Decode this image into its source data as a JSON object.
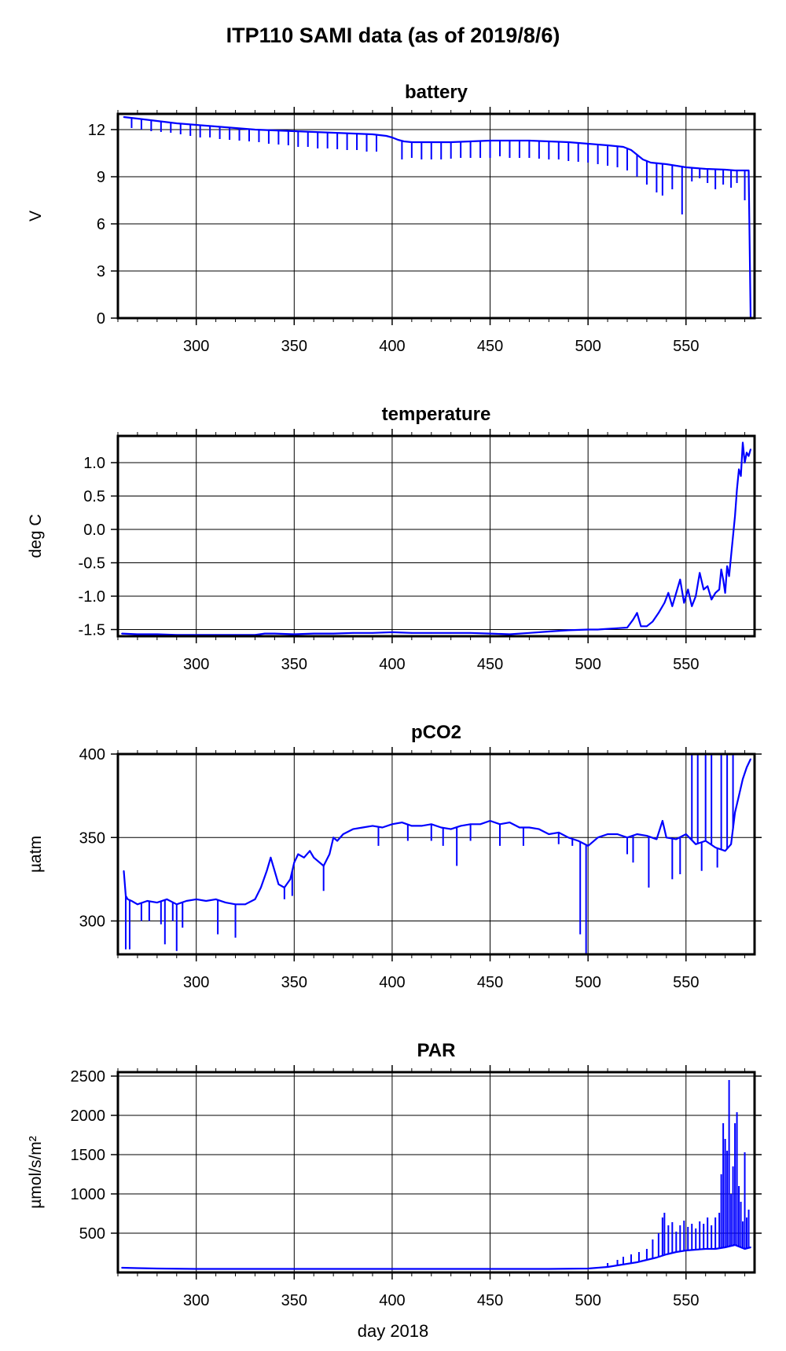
{
  "figure": {
    "title": "ITP110 SAMI data (as of 2019/8/6)",
    "xlabel": "day 2018"
  },
  "chart_data": [
    {
      "type": "line",
      "title": "battery",
      "ylabel": "V",
      "xlim": [
        260,
        585
      ],
      "ylim": [
        0,
        13
      ],
      "xticks": [
        300,
        350,
        400,
        450,
        500,
        550
      ],
      "yticks": [
        0,
        3,
        6,
        9,
        12
      ],
      "ytick_labels": [
        "0",
        "3",
        "6",
        "9",
        "12"
      ],
      "grid": true,
      "color": "#0000ff",
      "series": [
        {
          "x": [
            263,
            270,
            280,
            290,
            300,
            310,
            320,
            330,
            340,
            350,
            360,
            370,
            380,
            390,
            397,
            400,
            403,
            406,
            410,
            420,
            430,
            440,
            450,
            460,
            470,
            480,
            490,
            500,
            510,
            518,
            522,
            525,
            528,
            532,
            540,
            550,
            560,
            570,
            575,
            582,
            583
          ],
          "y": [
            12.8,
            12.7,
            12.55,
            12.4,
            12.3,
            12.2,
            12.1,
            12.0,
            11.95,
            11.9,
            11.85,
            11.8,
            11.75,
            11.7,
            11.6,
            11.5,
            11.35,
            11.25,
            11.2,
            11.2,
            11.2,
            11.25,
            11.3,
            11.3,
            11.3,
            11.25,
            11.2,
            11.1,
            11.0,
            10.9,
            10.7,
            10.4,
            10.1,
            9.9,
            9.8,
            9.6,
            9.5,
            9.45,
            9.4,
            9.4,
            0
          ]
        }
      ],
      "spikes": [
        {
          "x": 267,
          "y": 12.1
        },
        {
          "x": 272,
          "y": 12.0
        },
        {
          "x": 277,
          "y": 11.9
        },
        {
          "x": 282,
          "y": 11.85
        },
        {
          "x": 287,
          "y": 11.8
        },
        {
          "x": 292,
          "y": 11.7
        },
        {
          "x": 297,
          "y": 11.6
        },
        {
          "x": 302,
          "y": 11.5
        },
        {
          "x": 307,
          "y": 11.5
        },
        {
          "x": 312,
          "y": 11.4
        },
        {
          "x": 317,
          "y": 11.35
        },
        {
          "x": 322,
          "y": 11.3
        },
        {
          "x": 327,
          "y": 11.25
        },
        {
          "x": 332,
          "y": 11.2
        },
        {
          "x": 337,
          "y": 11.1
        },
        {
          "x": 342,
          "y": 11.05
        },
        {
          "x": 347,
          "y": 11.0
        },
        {
          "x": 352,
          "y": 10.9
        },
        {
          "x": 357,
          "y": 10.9
        },
        {
          "x": 362,
          "y": 10.8
        },
        {
          "x": 367,
          "y": 10.8
        },
        {
          "x": 372,
          "y": 10.75
        },
        {
          "x": 377,
          "y": 10.7
        },
        {
          "x": 382,
          "y": 10.7
        },
        {
          "x": 387,
          "y": 10.6
        },
        {
          "x": 392,
          "y": 10.6
        },
        {
          "x": 405,
          "y": 10.1
        },
        {
          "x": 410,
          "y": 10.2
        },
        {
          "x": 415,
          "y": 10.1
        },
        {
          "x": 420,
          "y": 10.1
        },
        {
          "x": 425,
          "y": 10.1
        },
        {
          "x": 430,
          "y": 10.15
        },
        {
          "x": 435,
          "y": 10.2
        },
        {
          "x": 440,
          "y": 10.2
        },
        {
          "x": 445,
          "y": 10.2
        },
        {
          "x": 450,
          "y": 10.2
        },
        {
          "x": 455,
          "y": 10.3
        },
        {
          "x": 460,
          "y": 10.2
        },
        {
          "x": 465,
          "y": 10.2
        },
        {
          "x": 470,
          "y": 10.2
        },
        {
          "x": 475,
          "y": 10.15
        },
        {
          "x": 480,
          "y": 10.1
        },
        {
          "x": 485,
          "y": 10.1
        },
        {
          "x": 490,
          "y": 10.0
        },
        {
          "x": 495,
          "y": 9.95
        },
        {
          "x": 500,
          "y": 9.9
        },
        {
          "x": 505,
          "y": 9.8
        },
        {
          "x": 510,
          "y": 9.7
        },
        {
          "x": 515,
          "y": 9.6
        },
        {
          "x": 520,
          "y": 9.4
        },
        {
          "x": 525,
          "y": 9.0
        },
        {
          "x": 530,
          "y": 8.5
        },
        {
          "x": 535,
          "y": 8.0
        },
        {
          "x": 538,
          "y": 7.8
        },
        {
          "x": 543,
          "y": 8.2
        },
        {
          "x": 548,
          "y": 6.6
        },
        {
          "x": 553,
          "y": 8.7
        },
        {
          "x": 557,
          "y": 8.9
        },
        {
          "x": 561,
          "y": 8.6
        },
        {
          "x": 565,
          "y": 8.2
        },
        {
          "x": 569,
          "y": 8.5
        },
        {
          "x": 573,
          "y": 8.3
        },
        {
          "x": 576,
          "y": 8.6
        },
        {
          "x": 580,
          "y": 7.5
        }
      ]
    },
    {
      "type": "line",
      "title": "temperature",
      "ylabel": "deg C",
      "xlim": [
        260,
        585
      ],
      "ylim": [
        -1.6,
        1.4
      ],
      "xticks": [
        300,
        350,
        400,
        450,
        500,
        550
      ],
      "yticks": [
        -1.5,
        -1.0,
        -0.5,
        0.0,
        0.5,
        1.0
      ],
      "ytick_labels": [
        "-1.5",
        "-1.0",
        "-0.5",
        "0.0",
        "0.5",
        "1.0"
      ],
      "grid": true,
      "color": "#0000ff",
      "series": [
        {
          "x": [
            262,
            270,
            280,
            290,
            300,
            310,
            320,
            330,
            335,
            340,
            350,
            360,
            370,
            380,
            390,
            400,
            410,
            420,
            430,
            440,
            450,
            460,
            470,
            480,
            490,
            500,
            505,
            510,
            515,
            520,
            523,
            525,
            527,
            530,
            533,
            536,
            539,
            541,
            543,
            545,
            547,
            549,
            551,
            553,
            555,
            557,
            559,
            561,
            563,
            565,
            567,
            568,
            569,
            570,
            571,
            572,
            573,
            574,
            575,
            576,
            577,
            578,
            579,
            580,
            581,
            582,
            583
          ],
          "y": [
            -1.56,
            -1.57,
            -1.57,
            -1.58,
            -1.58,
            -1.58,
            -1.58,
            -1.58,
            -1.56,
            -1.56,
            -1.57,
            -1.56,
            -1.56,
            -1.55,
            -1.55,
            -1.54,
            -1.55,
            -1.55,
            -1.55,
            -1.55,
            -1.56,
            -1.57,
            -1.55,
            -1.53,
            -1.51,
            -1.5,
            -1.5,
            -1.49,
            -1.48,
            -1.47,
            -1.35,
            -1.25,
            -1.45,
            -1.45,
            -1.38,
            -1.25,
            -1.1,
            -0.95,
            -1.15,
            -0.95,
            -0.75,
            -1.1,
            -0.9,
            -1.15,
            -1.0,
            -0.65,
            -0.9,
            -0.85,
            -1.05,
            -0.95,
            -0.9,
            -0.6,
            -0.75,
            -0.95,
            -0.55,
            -0.7,
            -0.4,
            -0.1,
            0.2,
            0.6,
            0.9,
            0.8,
            1.3,
            1.0,
            1.15,
            1.1,
            1.2
          ]
        }
      ]
    },
    {
      "type": "line",
      "title": "pCO2",
      "ylabel": "µatm",
      "xlim": [
        260,
        585
      ],
      "ylim": [
        280,
        400
      ],
      "xticks": [
        300,
        350,
        400,
        450,
        500,
        550
      ],
      "yticks": [
        300,
        350,
        400
      ],
      "ytick_labels": [
        "300",
        "350",
        "400"
      ],
      "grid": true,
      "color": "#0000ff",
      "series": [
        {
          "x": [
            263,
            264,
            265,
            267,
            270,
            275,
            280,
            285,
            290,
            295,
            300,
            305,
            310,
            315,
            320,
            325,
            330,
            333,
            336,
            338,
            340,
            342,
            345,
            348,
            350,
            352,
            355,
            358,
            360,
            365,
            368,
            370,
            372,
            375,
            380,
            385,
            390,
            395,
            400,
            405,
            410,
            415,
            420,
            425,
            430,
            435,
            440,
            445,
            450,
            455,
            460,
            465,
            470,
            475,
            480,
            485,
            490,
            495,
            500,
            505,
            510,
            515,
            520,
            525,
            530,
            535,
            538,
            540,
            545,
            550,
            555,
            560,
            565,
            570,
            573,
            575,
            577,
            579,
            581,
            583
          ],
          "y": [
            330,
            315,
            313,
            312,
            310,
            312,
            311,
            313,
            310,
            312,
            313,
            312,
            313,
            311,
            310,
            310,
            313,
            320,
            330,
            338,
            330,
            322,
            320,
            325,
            335,
            340,
            338,
            342,
            338,
            333,
            340,
            350,
            348,
            352,
            355,
            356,
            357,
            356,
            358,
            359,
            357,
            357,
            358,
            356,
            355,
            357,
            358,
            358,
            360,
            358,
            359,
            356,
            356,
            355,
            352,
            353,
            350,
            348,
            345,
            350,
            352,
            352,
            350,
            352,
            351,
            349,
            360,
            350,
            349,
            352,
            346,
            348,
            344,
            342,
            346,
            365,
            375,
            385,
            392,
            397
          ]
        }
      ],
      "spikes": [
        {
          "x": 264,
          "y": 283
        },
        {
          "x": 266,
          "y": 283
        },
        {
          "x": 272,
          "y": 300
        },
        {
          "x": 276,
          "y": 300
        },
        {
          "x": 282,
          "y": 298
        },
        {
          "x": 284,
          "y": 286
        },
        {
          "x": 288,
          "y": 300
        },
        {
          "x": 290,
          "y": 282
        },
        {
          "x": 293,
          "y": 296
        },
        {
          "x": 311,
          "y": 292
        },
        {
          "x": 320,
          "y": 290
        },
        {
          "x": 345,
          "y": 313
        },
        {
          "x": 349,
          "y": 315
        },
        {
          "x": 365,
          "y": 318
        },
        {
          "x": 393,
          "y": 345
        },
        {
          "x": 408,
          "y": 348
        },
        {
          "x": 420,
          "y": 348
        },
        {
          "x": 426,
          "y": 345
        },
        {
          "x": 433,
          "y": 333
        },
        {
          "x": 440,
          "y": 348
        },
        {
          "x": 455,
          "y": 345
        },
        {
          "x": 467,
          "y": 345
        },
        {
          "x": 485,
          "y": 346
        },
        {
          "x": 492,
          "y": 345
        },
        {
          "x": 496,
          "y": 292
        },
        {
          "x": 499,
          "y": 280
        },
        {
          "x": 520,
          "y": 340
        },
        {
          "x": 523,
          "y": 335
        },
        {
          "x": 531,
          "y": 320
        },
        {
          "x": 543,
          "y": 325
        },
        {
          "x": 547,
          "y": 328
        },
        {
          "x": 553,
          "y": 400
        },
        {
          "x": 556,
          "y": 400
        },
        {
          "x": 558,
          "y": 330
        },
        {
          "x": 560,
          "y": 400
        },
        {
          "x": 563,
          "y": 400
        },
        {
          "x": 566,
          "y": 332
        },
        {
          "x": 568,
          "y": 400
        },
        {
          "x": 571,
          "y": 400
        },
        {
          "x": 574,
          "y": 400
        }
      ]
    },
    {
      "type": "line",
      "title": "PAR",
      "ylabel": "µmol/s/m²",
      "xlim": [
        260,
        585
      ],
      "ylim": [
        0,
        2550
      ],
      "xticks": [
        300,
        350,
        400,
        450,
        500,
        550
      ],
      "yticks": [
        500,
        1000,
        1500,
        2000,
        2500
      ],
      "ytick_labels": [
        "500",
        "1000",
        "1500",
        "2000",
        "2500"
      ],
      "grid": true,
      "color": "#0000ff",
      "series": [
        {
          "x": [
            262,
            270,
            280,
            300,
            320,
            350,
            380,
            400,
            420,
            450,
            480,
            500,
            505,
            510,
            515,
            520,
            525,
            530,
            535,
            540,
            545,
            550,
            555,
            560,
            565,
            570,
            575,
            580,
            583
          ],
          "y": [
            60,
            55,
            50,
            45,
            45,
            45,
            45,
            45,
            45,
            45,
            45,
            50,
            60,
            70,
            90,
            110,
            130,
            160,
            190,
            230,
            260,
            280,
            290,
            300,
            300,
            320,
            350,
            300,
            320
          ]
        }
      ],
      "spikes": [
        {
          "x": 510,
          "y": 120
        },
        {
          "x": 515,
          "y": 160
        },
        {
          "x": 518,
          "y": 200
        },
        {
          "x": 522,
          "y": 230
        },
        {
          "x": 526,
          "y": 260
        },
        {
          "x": 530,
          "y": 300
        },
        {
          "x": 533,
          "y": 420
        },
        {
          "x": 536,
          "y": 500
        },
        {
          "x": 538,
          "y": 700
        },
        {
          "x": 539,
          "y": 760
        },
        {
          "x": 541,
          "y": 600
        },
        {
          "x": 543,
          "y": 640
        },
        {
          "x": 545,
          "y": 520
        },
        {
          "x": 547,
          "y": 600
        },
        {
          "x": 549,
          "y": 660
        },
        {
          "x": 551,
          "y": 580
        },
        {
          "x": 553,
          "y": 620
        },
        {
          "x": 555,
          "y": 560
        },
        {
          "x": 557,
          "y": 650
        },
        {
          "x": 559,
          "y": 620
        },
        {
          "x": 561,
          "y": 700
        },
        {
          "x": 563,
          "y": 600
        },
        {
          "x": 565,
          "y": 700
        },
        {
          "x": 567,
          "y": 760
        },
        {
          "x": 568,
          "y": 1250
        },
        {
          "x": 569,
          "y": 1900
        },
        {
          "x": 570,
          "y": 1700
        },
        {
          "x": 571,
          "y": 1550
        },
        {
          "x": 572,
          "y": 2450
        },
        {
          "x": 573,
          "y": 1000
        },
        {
          "x": 574,
          "y": 1350
        },
        {
          "x": 575,
          "y": 1900
        },
        {
          "x": 576,
          "y": 2040
        },
        {
          "x": 577,
          "y": 1100
        },
        {
          "x": 578,
          "y": 900
        },
        {
          "x": 579,
          "y": 650
        },
        {
          "x": 580,
          "y": 1530
        },
        {
          "x": 581,
          "y": 700
        },
        {
          "x": 582,
          "y": 800
        }
      ]
    }
  ]
}
